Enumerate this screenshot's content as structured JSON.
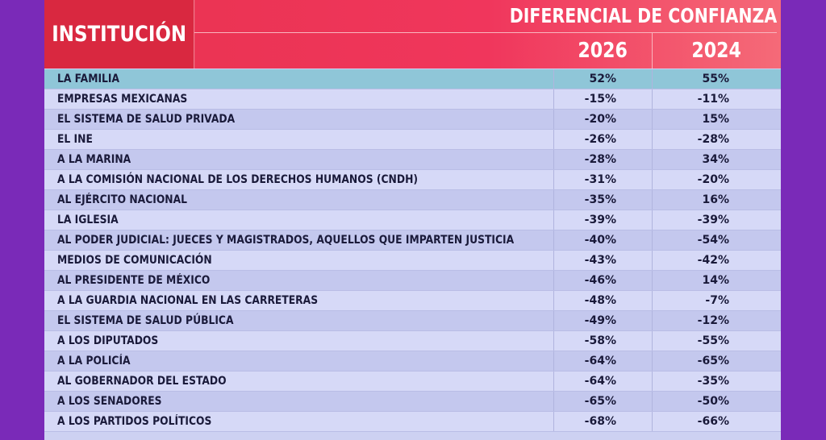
{
  "header": {
    "institution": "INSTITUCIÓN",
    "group": "DIFERENCIAL DE CONFIANZA",
    "years": [
      "2026",
      "2024"
    ]
  },
  "table": {
    "rows": [
      [
        "LA FAMILIA",
        "52%",
        "55%"
      ],
      [
        "EMPRESAS MEXICANAS",
        "-15%",
        "-11%"
      ],
      [
        "EL SISTEMA DE SALUD PRIVADA",
        "-20%",
        "15%"
      ],
      [
        "EL INE",
        "-26%",
        "-28%"
      ],
      [
        "A LA MARINA",
        "-28%",
        "34%"
      ],
      [
        "A LA COMISIÓN NACIONAL DE LOS DERECHOS HUMANOS (CNDH)",
        "-31%",
        "-20%"
      ],
      [
        "AL EJÉRCITO NACIONAL",
        "-35%",
        "16%"
      ],
      [
        "LA IGLESIA",
        "-39%",
        "-39%"
      ],
      [
        "AL PODER JUDICIAL: JUECES Y MAGISTRADOS, AQUELLOS QUE IMPARTEN JUSTICIA",
        "-40%",
        "-54%"
      ],
      [
        "MEDIOS DE COMUNICACIÓN",
        "-43%",
        "-42%"
      ],
      [
        "AL PRESIDENTE DE MÉXICO",
        "-46%",
        "14%"
      ],
      [
        "A LA GUARDIA NACIONAL EN LAS CARRETERAS",
        "-48%",
        "-7%"
      ],
      [
        "EL SISTEMA DE SALUD PÚBLICA",
        "-49%",
        "-12%"
      ],
      [
        "A LOS DIPUTADOS",
        "-58%",
        "-55%"
      ],
      [
        "A LA POLICÍA",
        "-64%",
        "-65%"
      ],
      [
        "AL GOBERNADOR DEL ESTADO",
        "-64%",
        "-35%"
      ],
      [
        "A LOS SENADORES",
        "-65%",
        "-50%"
      ],
      [
        "A LOS PARTIDOS POLÍTICOS",
        "-68%",
        "-66%"
      ]
    ]
  }
}
